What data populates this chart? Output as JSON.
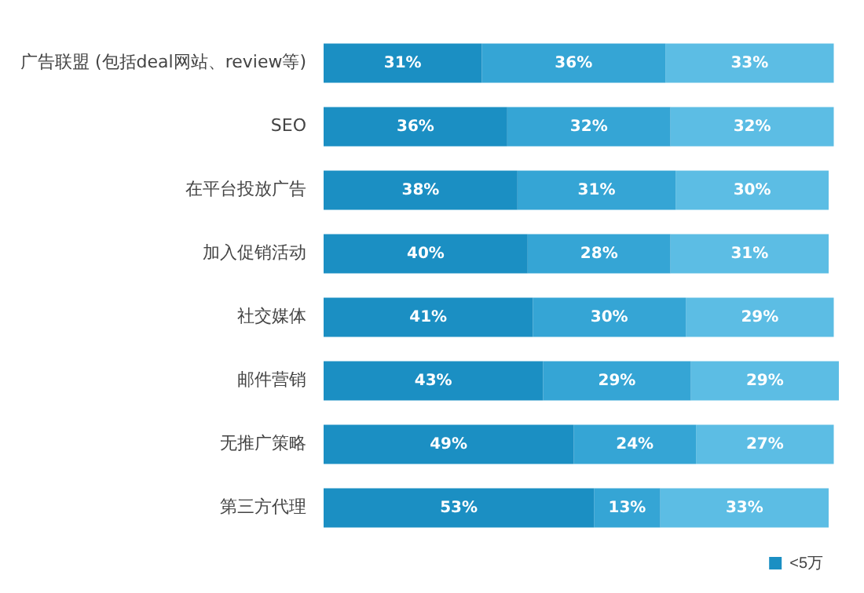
{
  "chart_data": {
    "type": "bar",
    "orientation": "horizontal",
    "stacked": true,
    "categories": [
      "广告联盟 (包括deal网站、review等)",
      "SEO",
      "在平台投放广告",
      "加入促销活动",
      "社交媒体",
      "邮件营销",
      "无推广策略",
      "第三方代理"
    ],
    "series": [
      {
        "name": "<5万",
        "color": "#1b8fc3",
        "values": [
          31,
          36,
          38,
          40,
          41,
          43,
          49,
          53
        ],
        "value_labels": [
          "31%",
          "36%",
          "38%",
          "40%",
          "41%",
          "43%",
          "49%",
          "53%"
        ]
      },
      {
        "color": "#35a5d5",
        "values": [
          36,
          32,
          31,
          28,
          30,
          29,
          24,
          13
        ],
        "value_labels": [
          "36%",
          "32%",
          "31%",
          "28%",
          "30%",
          "29%",
          "24%",
          "13%"
        ]
      },
      {
        "color": "#5cbde4",
        "values": [
          33,
          32,
          30,
          31,
          29,
          29,
          27,
          33
        ],
        "value_labels": [
          "33%",
          "32%",
          "30%",
          "31%",
          "29%",
          "29%",
          "27%",
          "33%"
        ]
      }
    ],
    "tick_labels": "y",
    "legend": "bottom right"
  }
}
